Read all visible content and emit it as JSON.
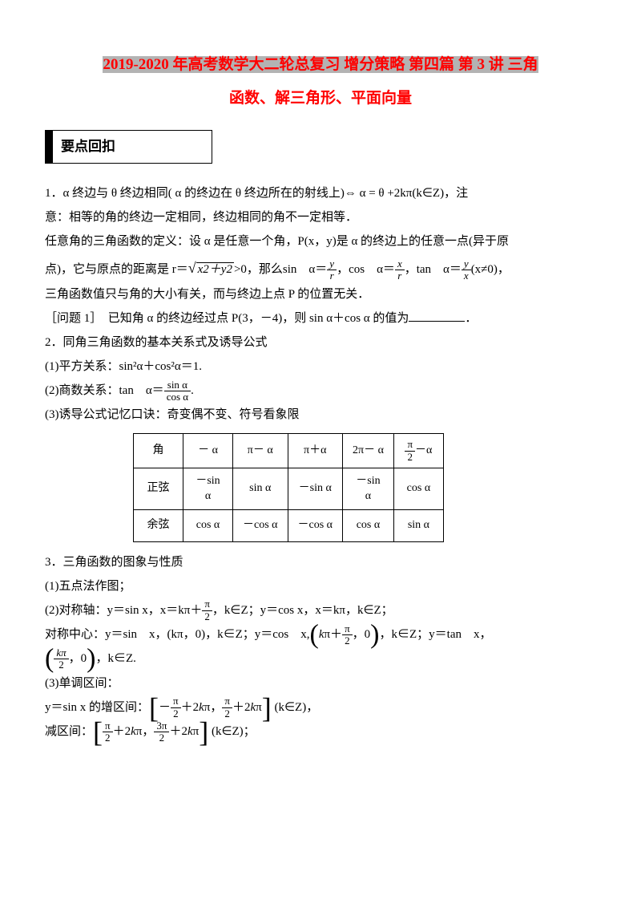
{
  "title": {
    "prefix_hl": "2019-2020",
    "part1": " 年高考数学大二轮总复习 增分策略 第四篇 第 ",
    "num": "3",
    "part2": " 讲 三角",
    "line2": "函数、解三角形、平面向量"
  },
  "section_header": "要点回扣",
  "para1a": "1．α 终边与 θ 终边相同( α 的终边在 θ 终边所在的射线上)⇔ α = θ +2kπ(k∈Z)，注",
  "para1b": "意：相等的角的终边一定相同，终边相同的角不一定相等．",
  "para1c": "任意角的三角函数的定义：设 α 是任意一个角，P(x，y)是 α 的终边上的任意一点(异于原",
  "para1d_pre": "点)，它与原点的距离是 r＝",
  "sqrt_arg": "x2＋y2",
  "para1d_post1": ">0，那么sin　α＝",
  "frac1": {
    "n": "y",
    "d": "r"
  },
  "para1d_post2": "，cos　α＝",
  "frac2": {
    "n": "x",
    "d": "r"
  },
  "para1d_post3": "，tan　α＝",
  "frac3": {
    "n": "y",
    "d": "x"
  },
  "para1d_post4": "(x≠0)，",
  "para1e": "三角函数值只与角的大小有关，而与终边上点 P 的位置无关．",
  "problem1": "［问题 1］　已知角 α 的终边经过点 P(3，－4)，则 sin α＋cos α 的值为",
  "problem1_end": "．",
  "para2": "2．同角三角函数的基本关系式及诱导公式",
  "para2a": "(1)平方关系：sin²α＋cos²α＝1.",
  "para2b_pre": "(2)商数关系：tan　α＝",
  "frac_tan": {
    "n": "sin α",
    "d": "cos α"
  },
  "para2b_post": ".",
  "para2c": "(3)诱导公式记忆口诀：奇变偶不变、符号看象限",
  "table": {
    "row1": [
      "角",
      "－ α",
      "π－ α",
      "π＋α",
      "2π－ α",
      "π/2－α"
    ],
    "row2": [
      "正弦",
      "－sin α",
      "sin α",
      "－sin α",
      "－sin α",
      "cos α"
    ],
    "row3": [
      "余弦",
      "cos α",
      "－cos α",
      "－cos α",
      "cos α",
      "sin α"
    ]
  },
  "para3": "3．三角函数的图象与性质",
  "para3a": "(1)五点法作图；",
  "para3b_pre": "(2)对称轴：y＝sin x，x＝kπ＋",
  "frac_pi2": {
    "n": "π",
    "d": "2"
  },
  "para3b_mid": "，k∈Z；y＝cos x，x＝kπ，k∈Z；",
  "para3c_pre": "对称中心：y＝sin　x，(kπ，0)，k∈Z；y＝cos　x,",
  "frac_center": {
    "n": "π",
    "d": "2"
  },
  "para3c_mid": "，k∈Z；y＝tan　x，",
  "frac_kpi2": {
    "n": "kπ",
    "d": "2"
  },
  "para3c_end": "，k∈Z.",
  "para3d": "(3)单调区间：",
  "para3e_pre": "y＝sin x 的增区间：",
  "bracket1a": {
    "n": "π",
    "d": "2"
  },
  "bracket1b": {
    "n": "π",
    "d": "2"
  },
  "para3e_post": " (k∈Z)，",
  "para3f_pre": "减区间：",
  "bracket2a": {
    "n": "π",
    "d": "2"
  },
  "bracket2b": {
    "n": "3π",
    "d": "2"
  },
  "para3f_post": " (k∈Z)；",
  "colors": {
    "red": "#ff0000",
    "highlight": "#b3b3b3",
    "text": "#000000",
    "bg": "#ffffff"
  }
}
